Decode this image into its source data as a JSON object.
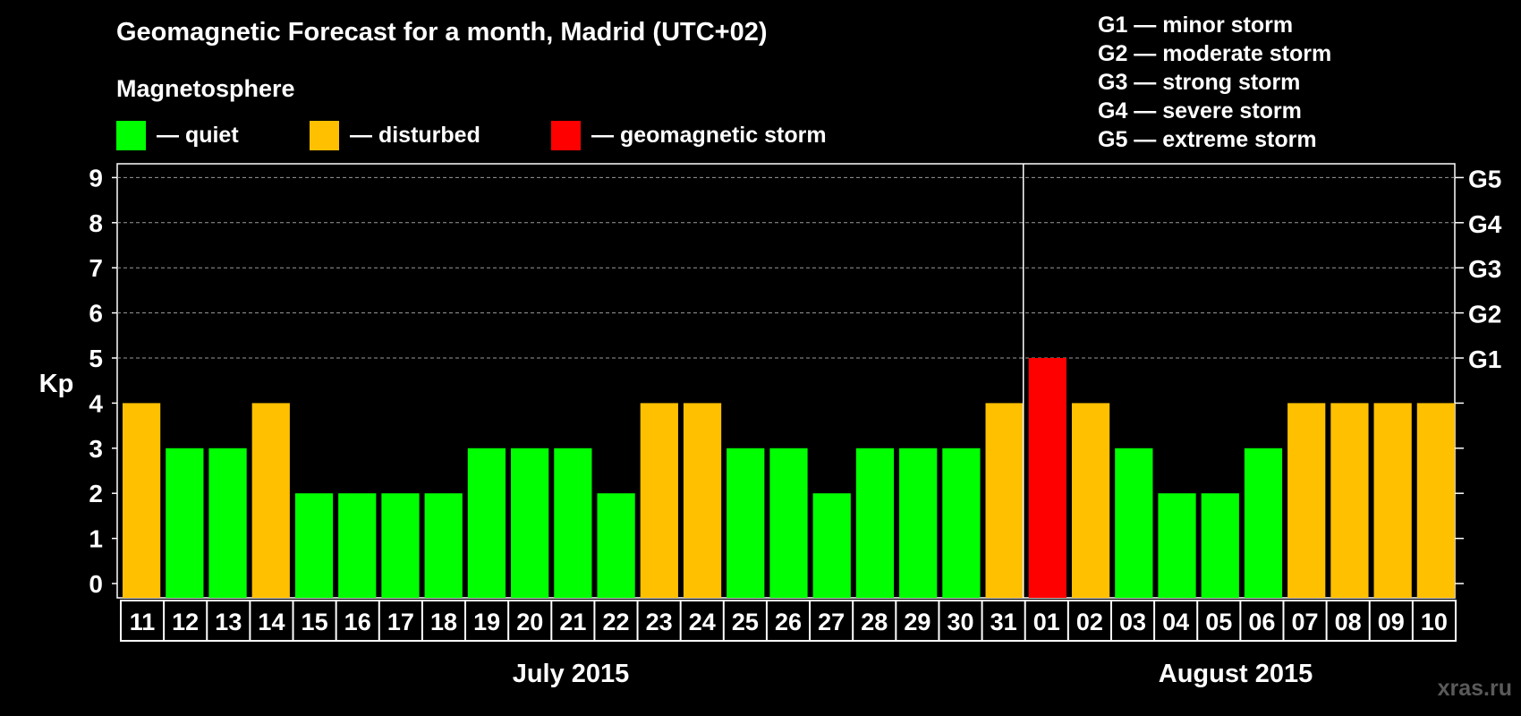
{
  "title": "Geomagnetic Forecast for a month, Madrid (UTC+02)",
  "magnetosphere_label": "Magnetosphere",
  "legend": [
    {
      "label": "— quiet",
      "color": "#00ff00"
    },
    {
      "label": "— disturbed",
      "color": "#ffc000"
    },
    {
      "label": "— geomagnetic storm",
      "color": "#ff0000"
    }
  ],
  "storm_legend": [
    "G1 — minor storm",
    "G2 — moderate storm",
    "G3 — strong storm",
    "G4 — severe storm",
    "G5 — extreme storm"
  ],
  "months": [
    "July 2015",
    "August 2015"
  ],
  "watermark": "xras.ru",
  "chart_data": {
    "type": "bar",
    "ylabel": "Kp",
    "ylim": [
      0,
      9
    ],
    "yticks": [
      0,
      1,
      2,
      3,
      4,
      5,
      6,
      7,
      8,
      9
    ],
    "right_axis_labels": [
      {
        "kp": 5,
        "label": "G1"
      },
      {
        "kp": 6,
        "label": "G2"
      },
      {
        "kp": 7,
        "label": "G3"
      },
      {
        "kp": 8,
        "label": "G4"
      },
      {
        "kp": 9,
        "label": "G5"
      }
    ],
    "grid": "dashed horizontal at Kp 5-9",
    "categories": [
      "11",
      "12",
      "13",
      "14",
      "15",
      "16",
      "17",
      "18",
      "19",
      "20",
      "21",
      "22",
      "23",
      "24",
      "25",
      "26",
      "27",
      "28",
      "29",
      "30",
      "31",
      "01",
      "02",
      "03",
      "04",
      "05",
      "06",
      "07",
      "08",
      "09",
      "10"
    ],
    "values": [
      4,
      3,
      3,
      4,
      2,
      2,
      2,
      2,
      3,
      3,
      3,
      2,
      4,
      4,
      3,
      3,
      2,
      3,
      3,
      3,
      4,
      5,
      4,
      3,
      2,
      2,
      3,
      4,
      4,
      4,
      4
    ],
    "month_split_before": "01",
    "colors": {
      "quiet": "#00ff00",
      "disturbed": "#ffc000",
      "storm": "#ff0000"
    }
  }
}
